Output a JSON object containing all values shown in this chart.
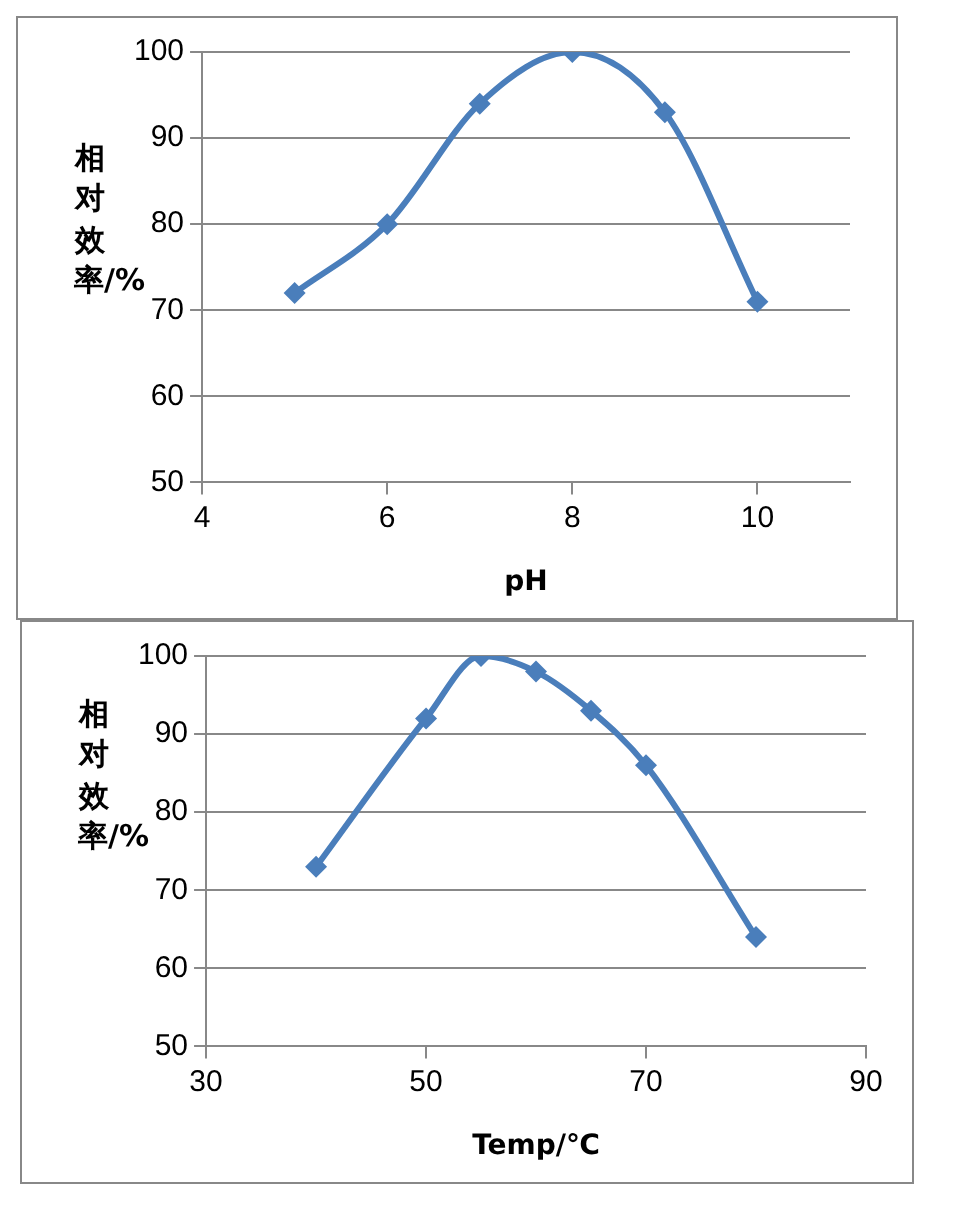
{
  "chart_data": [
    {
      "type": "line",
      "xlabel": "pH",
      "ylabel": "相对效率/%",
      "x": [
        5,
        6,
        7,
        8,
        9,
        10
      ],
      "series": [
        {
          "color": "#4a7ebb",
          "values": [
            72,
            80,
            94,
            100,
            93,
            71
          ]
        }
      ],
      "xlim": [
        4,
        11
      ],
      "xticks": [
        4,
        6,
        8,
        10
      ],
      "ylim": [
        50,
        100
      ],
      "yticks": [
        50,
        60,
        70,
        80,
        90,
        100
      ],
      "grid": "y",
      "legend": false,
      "marker": "diamond",
      "line_style": "solid"
    },
    {
      "type": "line",
      "xlabel": "Temp/℃",
      "ylabel": "相对效率/%",
      "x": [
        40,
        50,
        55,
        60,
        65,
        70,
        80
      ],
      "series": [
        {
          "color": "#4a7ebb",
          "values": [
            73,
            92,
            100,
            98,
            93,
            86,
            64
          ]
        }
      ],
      "xlim": [
        30,
        90
      ],
      "xticks": [
        30,
        50,
        70,
        90
      ],
      "ylim": [
        50,
        100
      ],
      "yticks": [
        50,
        60,
        70,
        80,
        90,
        100
      ],
      "grid": "y",
      "legend": false,
      "marker": "diamond",
      "line_style": "solid"
    }
  ]
}
